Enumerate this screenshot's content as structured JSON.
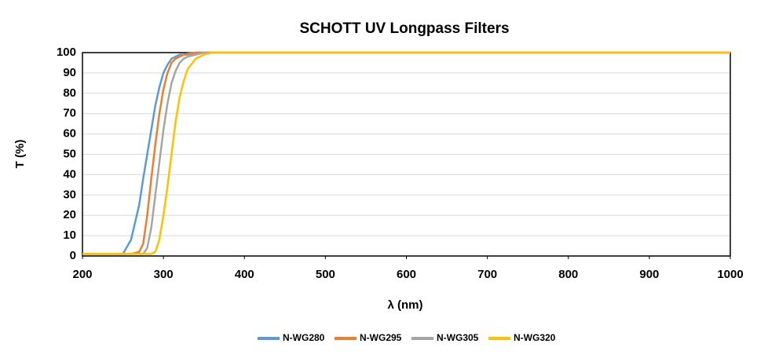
{
  "chart_data": {
    "type": "line",
    "title": "SCHOTT UV Longpass Filters",
    "x_label": "λ (nm)",
    "y_label": "T (%)",
    "x": [
      200,
      250,
      260,
      270,
      275,
      280,
      285,
      290,
      295,
      300,
      305,
      310,
      315,
      320,
      325,
      330,
      340,
      350,
      360,
      380,
      400,
      500,
      1000
    ],
    "series": [
      {
        "name": "N-WG280",
        "color": "#5b9bd5",
        "values": [
          1,
          1,
          8,
          25,
          38,
          50,
          62,
          74,
          83,
          90,
          94,
          97,
          98,
          99,
          99,
          99.5,
          100,
          100,
          100,
          100,
          100,
          100,
          100
        ]
      },
      {
        "name": "N-WG295",
        "color": "#ed7d31",
        "values": [
          1,
          1,
          1,
          2,
          6,
          20,
          38,
          55,
          70,
          82,
          90,
          95,
          97,
          98,
          99,
          99,
          100,
          100,
          100,
          100,
          100,
          100,
          100
        ]
      },
      {
        "name": "N-WG305",
        "color": "#a5a5a5",
        "values": [
          1,
          1,
          1,
          1,
          1,
          4,
          14,
          30,
          46,
          62,
          75,
          85,
          91,
          95,
          97,
          98,
          99,
          100,
          100,
          100,
          100,
          100,
          100
        ]
      },
      {
        "name": "N-WG320",
        "color": "#ffc000",
        "values": [
          1,
          1,
          1,
          1,
          1,
          1,
          1,
          2,
          8,
          20,
          34,
          50,
          66,
          78,
          86,
          92,
          97,
          99,
          100,
          100,
          100,
          100,
          100
        ]
      }
    ],
    "xlim": [
      200,
      1000
    ],
    "xticks": [
      200,
      300,
      400,
      500,
      600,
      700,
      800,
      900,
      1000
    ],
    "ylim": [
      0,
      100
    ],
    "yticks": [
      0,
      10,
      20,
      30,
      40,
      50,
      60,
      70,
      80,
      90,
      100
    ],
    "grid": true,
    "legend": "bottom"
  }
}
